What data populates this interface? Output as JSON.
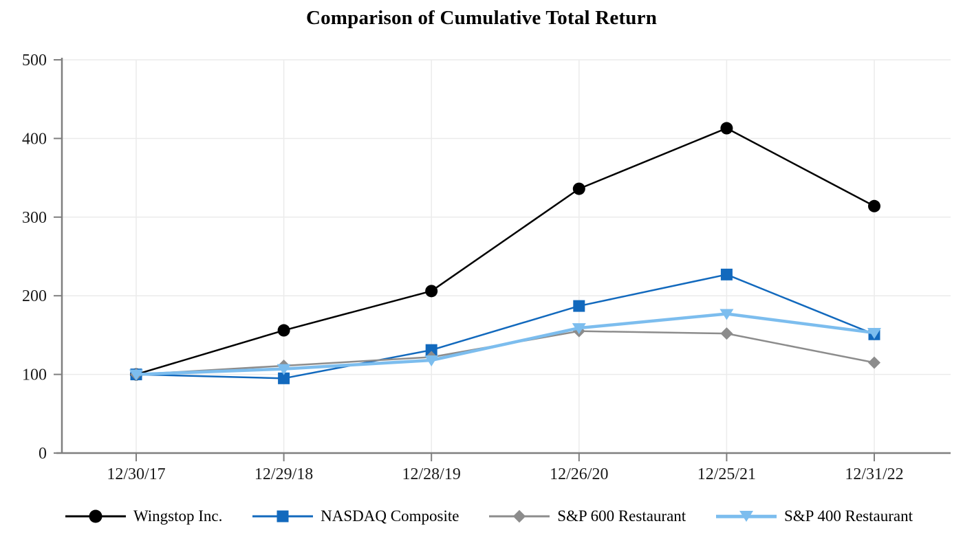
{
  "chart_data": {
    "type": "line",
    "title": "Comparison of Cumulative Total Return",
    "x_labels": [
      "12/30/17",
      "12/29/18",
      "12/28/19",
      "12/26/20",
      "12/25/21",
      "12/31/22"
    ],
    "y_ticks": [
      0,
      100,
      200,
      300,
      400,
      500
    ],
    "ylim": [
      0,
      500
    ],
    "grid": true,
    "legend_position": "bottom",
    "axis_color": "#7f7f7f",
    "gridline_color": "#ebebeb",
    "series": [
      {
        "name": "Wingstop Inc.",
        "marker": "circle",
        "color": "#000000",
        "line_width": 2.5,
        "values": [
          100,
          156,
          206,
          336,
          413,
          314
        ]
      },
      {
        "name": "NASDAQ Composite",
        "marker": "square",
        "color": "#1269bd",
        "line_width": 2.5,
        "values": [
          100,
          95,
          131,
          187,
          227,
          151
        ]
      },
      {
        "name": "S&P 600 Restaurant",
        "marker": "diamond",
        "color": "#8c8c8c",
        "line_width": 2.5,
        "values": [
          100,
          111,
          122,
          155,
          152,
          115
        ]
      },
      {
        "name": "S&P 400 Restaurant",
        "marker": "triangle-down",
        "color": "#7cbdee",
        "line_width": 4.5,
        "values": [
          100,
          107,
          118,
          159,
          177,
          153
        ]
      }
    ]
  }
}
